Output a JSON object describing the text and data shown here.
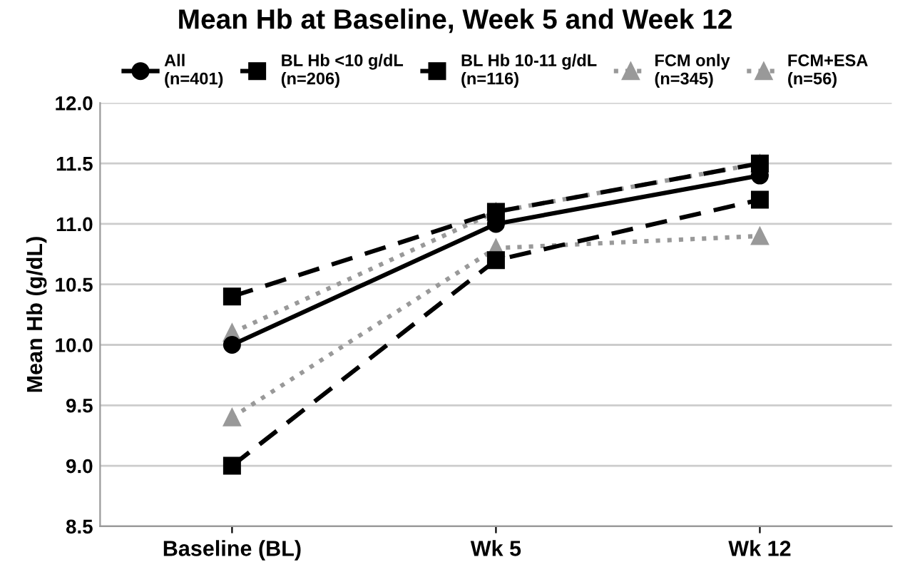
{
  "chart_data": {
    "type": "line",
    "title": "Mean Hb at Baseline, Week 5 and Week 12",
    "ylabel": "Mean Hb (g/dL)",
    "categories": [
      "Baseline (BL)",
      "Wk 5",
      "Wk 12"
    ],
    "series": [
      {
        "name": "All\n(n=401)",
        "color": "#000000",
        "values": [
          10.0,
          11.0,
          11.4
        ],
        "marker": "circle",
        "line_style": "solid"
      },
      {
        "name": "BL Hb <10 g/dL\n(n=206)",
        "color": "#000000",
        "values": [
          9.0,
          10.7,
          11.2
        ],
        "marker": "square",
        "line_style": "dashed"
      },
      {
        "name": "BL Hb 10-11 g/dL\n(n=116)",
        "color": "#000000",
        "values": [
          10.4,
          11.1,
          11.5
        ],
        "marker": "square",
        "line_style": "dashed"
      },
      {
        "name": "FCM only\n(n=345)",
        "color": "#999999",
        "values": [
          10.1,
          11.1,
          11.5
        ],
        "marker": "triangle",
        "line_style": "dotted"
      },
      {
        "name": "FCM+ESA\n(n=56)",
        "color": "#999999",
        "values": [
          9.4,
          10.8,
          10.9
        ],
        "marker": "triangle",
        "line_style": "dotted"
      }
    ],
    "ylim": [
      8.5,
      12.0
    ],
    "yticks": [
      {
        "value": 8.5,
        "label": "8.5"
      },
      {
        "value": 9.0,
        "label": "9.0"
      },
      {
        "value": 9.5,
        "label": "9.5"
      },
      {
        "value": 10.0,
        "label": "10.0"
      },
      {
        "value": 10.5,
        "label": "10.5"
      },
      {
        "value": 11.0,
        "label": "11.0"
      },
      {
        "value": 11.5,
        "label": "11.5"
      },
      {
        "value": 12.0,
        "label": "12.0"
      }
    ],
    "grid": "y",
    "legend": "top"
  }
}
